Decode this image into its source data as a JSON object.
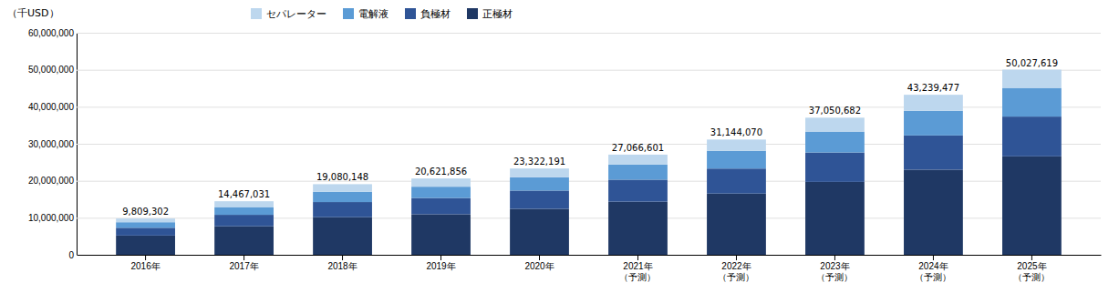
{
  "chart_data": {
    "type": "bar",
    "stacked": true,
    "ylabel": "（千USD）",
    "categories": [
      "2016年",
      "2017年",
      "2018年",
      "2019年",
      "2020年",
      "2021年\n（予測）",
      "2022年\n（予測）",
      "2023年\n（予測）",
      "2024年\n（予測）",
      "2025年\n（予測）"
    ],
    "series": [
      {
        "name": "正極材",
        "color": "#1F3864",
        "values": [
          5200000,
          7700000,
          10150000,
          10950000,
          12400000,
          14350000,
          16550000,
          19700000,
          23000000,
          26600000
        ]
      },
      {
        "name": "負極材",
        "color": "#2F5496",
        "values": [
          2100000,
          3100000,
          4100000,
          4400000,
          4950000,
          5950000,
          6750000,
          7950000,
          9250000,
          10750000
        ]
      },
      {
        "name": "電解液",
        "color": "#5B9BD5",
        "values": [
          1500000,
          2100000,
          2750000,
          3050000,
          3600000,
          4100000,
          4800000,
          5650000,
          6650000,
          7750000
        ]
      },
      {
        "name": "セパレーター",
        "color": "#BDD7EE",
        "values": [
          1009302,
          1567031,
          2080148,
          2221856,
          2372191,
          2666601,
          3044070,
          3750682,
          4339477,
          4927619
        ]
      }
    ],
    "totals": [
      {
        "value": 9809302,
        "label": "9,809,302"
      },
      {
        "value": 14467031,
        "label": "14,467,031"
      },
      {
        "value": 19080148,
        "label": "19,080,148"
      },
      {
        "value": 20621856,
        "label": "20,621,856"
      },
      {
        "value": 23322191,
        "label": "23,322,191"
      },
      {
        "value": 27066601,
        "label": "27,066,601"
      },
      {
        "value": 31144070,
        "label": "31,144,070"
      },
      {
        "value": 37050682,
        "label": "37,050,682"
      },
      {
        "value": 43239477,
        "label": "43,239,477"
      },
      {
        "value": 50027619,
        "label": "50,027,619"
      }
    ],
    "ylim": [
      0,
      60000000
    ],
    "yticks": [
      0,
      {
        "value": 10000000,
        "label": "10,000,000"
      },
      {
        "value": 20000000,
        "label": "20,000,000"
      },
      {
        "value": 30000000,
        "label": "30,000,000"
      },
      {
        "value": 40000000,
        "label": "40,000,000"
      },
      {
        "value": 50000000,
        "label": "50,000,000"
      },
      {
        "value": 60000000,
        "label": "60,000,000"
      }
    ],
    "grid": true,
    "legend": "upper left"
  }
}
